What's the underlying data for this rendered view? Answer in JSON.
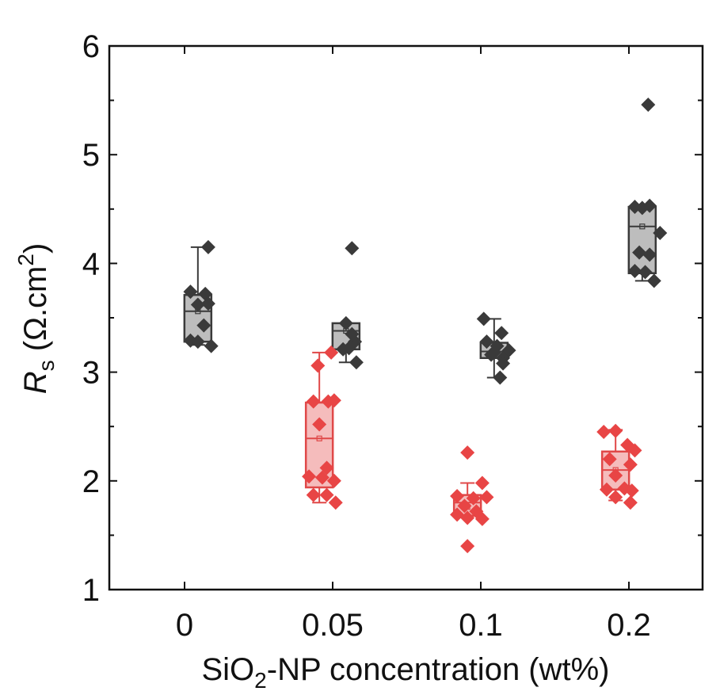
{
  "chart_data": {
    "type": "box",
    "title": "",
    "xlabel": {
      "prefix": "SiO",
      "sub": "2",
      "suffix": "-NP concentration (wt%)"
    },
    "ylabel": {
      "main": "R",
      "sub": "s",
      "unit_open": " (Ω.cm",
      "sup": "2",
      "unit_close": ")"
    },
    "ylim": [
      1,
      6
    ],
    "yticks": [
      "1",
      "2",
      "3",
      "4",
      "5",
      "6"
    ],
    "categories": [
      "0",
      "0.05",
      "0.1",
      "0.2"
    ],
    "colors": {
      "gray_box_fill": "#bdbdbd",
      "gray_line": "#3a3a3a",
      "gray_point": "#3a3a3a",
      "red_box_fill": "#f5bcbc",
      "red_line": "#e04848",
      "red_point": "#e84545"
    },
    "series": [
      {
        "name": "gray",
        "color": "gray",
        "boxes": [
          {
            "category": "0",
            "offset": 0.09,
            "min": 3.25,
            "q1": 3.28,
            "median": 3.56,
            "mean": 3.56,
            "q3": 3.71,
            "max": 4.15,
            "points": [
              [
                -0.05,
                3.74
              ],
              [
                0.05,
                3.72
              ],
              [
                0.0,
                3.62
              ],
              [
                0.07,
                3.63
              ],
              [
                0.04,
                3.43
              ],
              [
                -0.05,
                3.29
              ],
              [
                0.0,
                3.28
              ],
              [
                0.09,
                3.24
              ],
              [
                0.07,
                4.15
              ]
            ]
          },
          {
            "category": "0.05",
            "offset": 0.09,
            "min": 3.09,
            "q1": 3.21,
            "median": 3.38,
            "mean": 3.38,
            "q3": 3.45,
            "max": 3.45,
            "points": [
              [
                -0.02,
                3.21
              ],
              [
                0.02,
                3.22
              ],
              [
                0.06,
                3.28
              ],
              [
                0.0,
                3.45
              ],
              [
                0.04,
                3.35
              ],
              [
                0.07,
                3.09
              ],
              [
                0.04,
                4.14
              ]
            ]
          },
          {
            "category": "0.1",
            "offset": 0.09,
            "min": 2.95,
            "q1": 3.13,
            "median": 3.19,
            "mean": 3.2,
            "q3": 3.27,
            "max": 3.49,
            "points": [
              [
                -0.07,
                3.49
              ],
              [
                0.05,
                3.36
              ],
              [
                -0.05,
                3.28
              ],
              [
                0.1,
                3.2
              ],
              [
                -0.02,
                3.16
              ],
              [
                0.06,
                3.13
              ],
              [
                0.02,
                3.24
              ],
              [
                0.06,
                3.08
              ],
              [
                0.04,
                2.95
              ],
              [
                0.0,
                3.18
              ]
            ]
          },
          {
            "category": "0.2",
            "offset": 0.09,
            "min": 3.84,
            "q1": 3.91,
            "median": 4.34,
            "mean": 4.34,
            "q3": 4.52,
            "max": 4.52,
            "points": [
              [
                -0.05,
                4.52
              ],
              [
                0.0,
                4.51
              ],
              [
                0.05,
                4.53
              ],
              [
                0.12,
                4.28
              ],
              [
                -0.02,
                4.1
              ],
              [
                0.05,
                4.08
              ],
              [
                -0.05,
                3.93
              ],
              [
                0.02,
                3.92
              ],
              [
                0.08,
                3.84
              ],
              [
                0.04,
                5.46
              ]
            ]
          }
        ]
      },
      {
        "name": "red",
        "color": "red",
        "boxes": [
          {
            "category": "0.05",
            "offset": -0.09,
            "min": 1.8,
            "q1": 1.94,
            "median": 2.39,
            "mean": 2.39,
            "q3": 2.72,
            "max": 3.18,
            "points": [
              [
                -0.01,
                3.06
              ],
              [
                0.08,
                3.18
              ],
              [
                -0.04,
                2.73
              ],
              [
                0.06,
                2.73
              ],
              [
                0.1,
                2.74
              ],
              [
                0.0,
                2.52
              ],
              [
                0.05,
                2.12
              ],
              [
                -0.07,
                2.04
              ],
              [
                0.02,
                2.03
              ],
              [
                0.1,
                2.0
              ],
              [
                -0.04,
                1.87
              ],
              [
                0.05,
                1.87
              ],
              [
                0.11,
                1.8
              ]
            ]
          },
          {
            "category": "0.1",
            "offset": -0.09,
            "min": 1.68,
            "q1": 1.68,
            "median": 1.8,
            "mean": 1.76,
            "q3": 1.87,
            "max": 1.98,
            "points": [
              [
                0.0,
                2.26
              ],
              [
                0.1,
                1.98
              ],
              [
                -0.07,
                1.86
              ],
              [
                0.04,
                1.84
              ],
              [
                0.13,
                1.85
              ],
              [
                -0.02,
                1.77
              ],
              [
                0.06,
                1.72
              ],
              [
                -0.07,
                1.69
              ],
              [
                0.1,
                1.65
              ],
              [
                0.0,
                1.66
              ],
              [
                0.0,
                1.4
              ]
            ]
          },
          {
            "category": "0.2",
            "offset": -0.09,
            "min": 1.82,
            "q1": 1.92,
            "median": 2.1,
            "mean": 2.1,
            "q3": 2.27,
            "max": 2.47,
            "points": [
              [
                -0.08,
                2.45
              ],
              [
                0.0,
                2.46
              ],
              [
                0.08,
                2.33
              ],
              [
                0.13,
                2.28
              ],
              [
                -0.04,
                2.2
              ],
              [
                0.1,
                2.15
              ],
              [
                0.0,
                2.05
              ],
              [
                -0.06,
                1.92
              ],
              [
                0.06,
                1.93
              ],
              [
                0.11,
                1.91
              ],
              [
                0.0,
                1.85
              ],
              [
                0.1,
                1.8
              ]
            ]
          }
        ]
      }
    ]
  }
}
